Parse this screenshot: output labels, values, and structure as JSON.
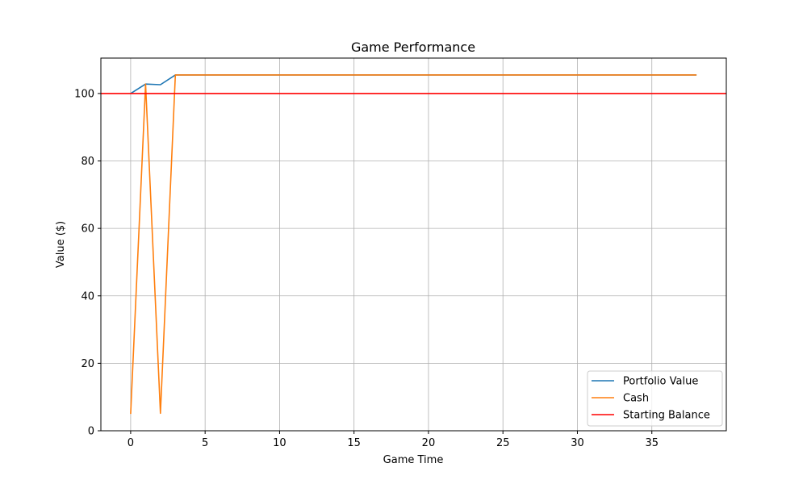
{
  "chart_data": {
    "type": "line",
    "title": "Game Performance",
    "xlabel": "Game Time",
    "ylabel": "Value ($)",
    "xlim": [
      -2,
      40
    ],
    "ylim": [
      0,
      110.5
    ],
    "xticks": [
      0,
      5,
      10,
      15,
      20,
      25,
      30,
      35
    ],
    "yticks": [
      0,
      20,
      40,
      60,
      80,
      100
    ],
    "grid": true,
    "legend_position": "bottom-right",
    "series": [
      {
        "name": "Portfolio Value",
        "color": "#1f77b4",
        "x": [
          0,
          1,
          2,
          3,
          38
        ],
        "y": [
          100,
          102.8,
          102.6,
          105.5,
          105.5
        ]
      },
      {
        "name": "Cash",
        "color": "#ff7f0e",
        "x": [
          0,
          1,
          2,
          3,
          38
        ],
        "y": [
          5,
          102.8,
          5.2,
          105.5,
          105.5
        ]
      }
    ],
    "reference_lines": [
      {
        "name": "Starting Balance",
        "color": "#ff0000",
        "y": 100
      }
    ]
  }
}
